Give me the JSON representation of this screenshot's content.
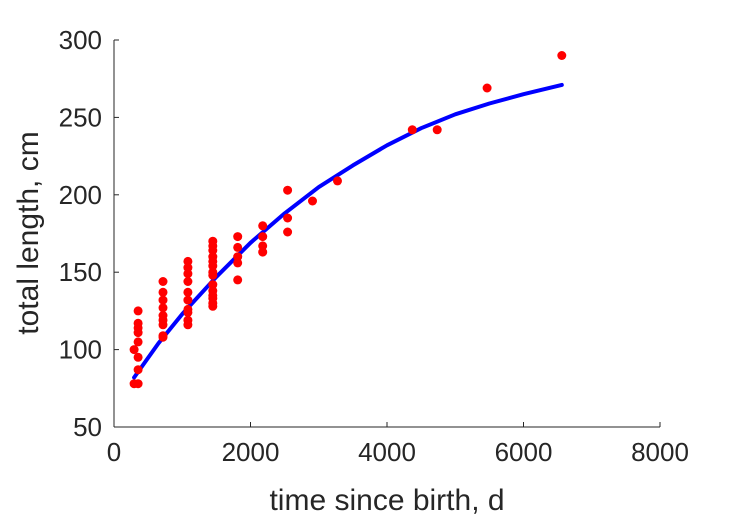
{
  "chart_data": {
    "type": "scatter",
    "title": "",
    "xlabel": "time since birth, d",
    "ylabel": "total length, cm",
    "xlim": [
      0,
      8000
    ],
    "ylim": [
      50,
      300
    ],
    "x_ticks": [
      0,
      2000,
      4000,
      6000,
      8000
    ],
    "y_ticks": [
      50,
      100,
      150,
      200,
      250,
      300
    ],
    "x_tick_labels": [
      "0",
      "2000",
      "4000",
      "6000",
      "8000"
    ],
    "y_tick_labels": [
      "50",
      "100",
      "150",
      "200",
      "250",
      "300"
    ],
    "grid": false,
    "legend": "none",
    "colors": {
      "observed": "#ff0000",
      "fitted": "#0000ff",
      "axis": "#262626"
    },
    "series": [
      {
        "type": "scatter",
        "x": [
          294,
          294,
          353,
          353,
          353,
          353,
          353,
          353,
          353,
          353,
          718,
          718,
          718,
          718,
          718,
          718,
          718,
          718,
          718,
          1083,
          1083,
          1083,
          1083,
          1083,
          1083,
          1083,
          1083,
          1083,
          1083,
          1448,
          1448,
          1448,
          1448,
          1448,
          1448,
          1448,
          1448,
          1448,
          1448,
          1448,
          1448,
          1448,
          1448,
          1813,
          1813,
          1813,
          1813,
          1813,
          2179,
          2179,
          2179,
          2179,
          2544,
          2544,
          2544,
          2909,
          3275,
          4370,
          4735,
          5466,
          6561
        ],
        "y": [
          78,
          100,
          125,
          117,
          114,
          111,
          105,
          95,
          87,
          78,
          144,
          137,
          132,
          127,
          122,
          119,
          116,
          109,
          108,
          157,
          153,
          149,
          144,
          137,
          132,
          126,
          124,
          119,
          116,
          170,
          167,
          164,
          160,
          157,
          154,
          150,
          148,
          142,
          138,
          135,
          133,
          130,
          128,
          173,
          166,
          160,
          156,
          145,
          180,
          173,
          167,
          163,
          203,
          185,
          176,
          196,
          209,
          242,
          242,
          269,
          290
        ]
      },
      {
        "type": "line",
        "x": [
          294,
          650,
          1000,
          1500,
          2000,
          2500,
          3000,
          3500,
          4000,
          4500,
          5000,
          5500,
          6000,
          6561
        ],
        "y": [
          82,
          104,
          123,
          147,
          169,
          188,
          205,
          219,
          232,
          243,
          252,
          259,
          265,
          271
        ]
      }
    ]
  }
}
